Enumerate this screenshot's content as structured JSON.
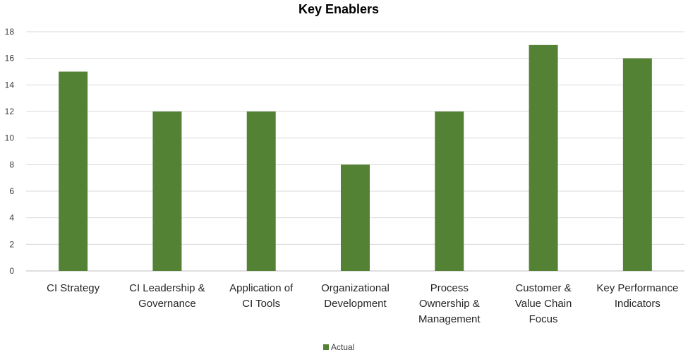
{
  "chart_data": {
    "type": "bar",
    "title": "Key Enablers",
    "categories": [
      [
        "CI Strategy"
      ],
      [
        "CI Leadership &",
        "Governance"
      ],
      [
        "Application of",
        "CI Tools"
      ],
      [
        "Organizational",
        "Development"
      ],
      [
        "Process",
        "Ownership  &",
        "Management"
      ],
      [
        "Customer &",
        "Value Chain",
        "Focus"
      ],
      [
        "Key Performance",
        "Indicators"
      ]
    ],
    "series": [
      {
        "name": "Actual",
        "values": [
          15,
          12,
          12,
          8,
          12,
          17,
          16
        ]
      }
    ],
    "ylim": [
      0,
      18
    ],
    "yticks": [
      0,
      2,
      4,
      6,
      8,
      10,
      12,
      14,
      16,
      18
    ],
    "grid": true,
    "legend": "bottom",
    "colors": {
      "bar": "#548235",
      "grid": "#d9d9d9"
    }
  }
}
